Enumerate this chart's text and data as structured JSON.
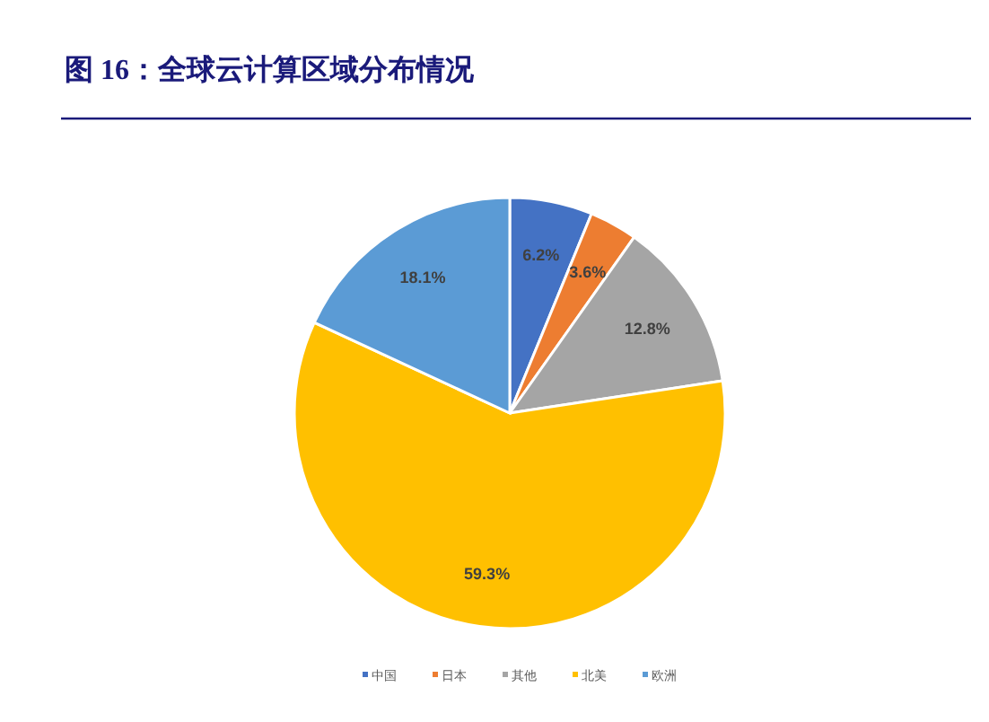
{
  "chart_data": {
    "type": "pie",
    "title": "图 16：全球云计算区域分布情况",
    "categories": [
      "中国",
      "日本",
      "其他",
      "北美",
      "欧洲"
    ],
    "values": [
      6.2,
      3.6,
      12.8,
      59.3,
      18.1
    ],
    "colors": [
      "#4472c4",
      "#ed7d31",
      "#a5a5a5",
      "#ffc000",
      "#5b9bd5"
    ],
    "value_labels": [
      "6.2%",
      "3.6%",
      "12.8%",
      "59.3%",
      "18.1%"
    ],
    "legend": "bottom"
  }
}
